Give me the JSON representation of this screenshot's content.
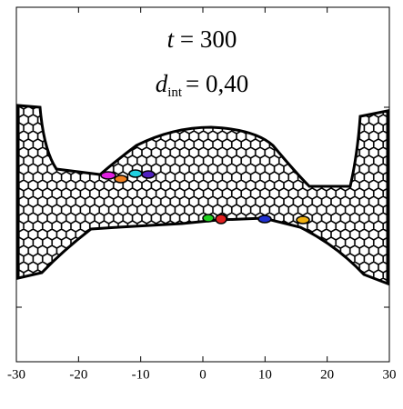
{
  "chart_data": {
    "type": "tissue-snapshot",
    "annotations": {
      "time_symbol": "t",
      "time_value": "= 300",
      "d_symbol": "d",
      "d_subscript": "int",
      "d_value": "= 0,40"
    },
    "xlim": [
      -30,
      30
    ],
    "xticks": [
      -30,
      -20,
      -10,
      0,
      10,
      20,
      30
    ]
  }
}
